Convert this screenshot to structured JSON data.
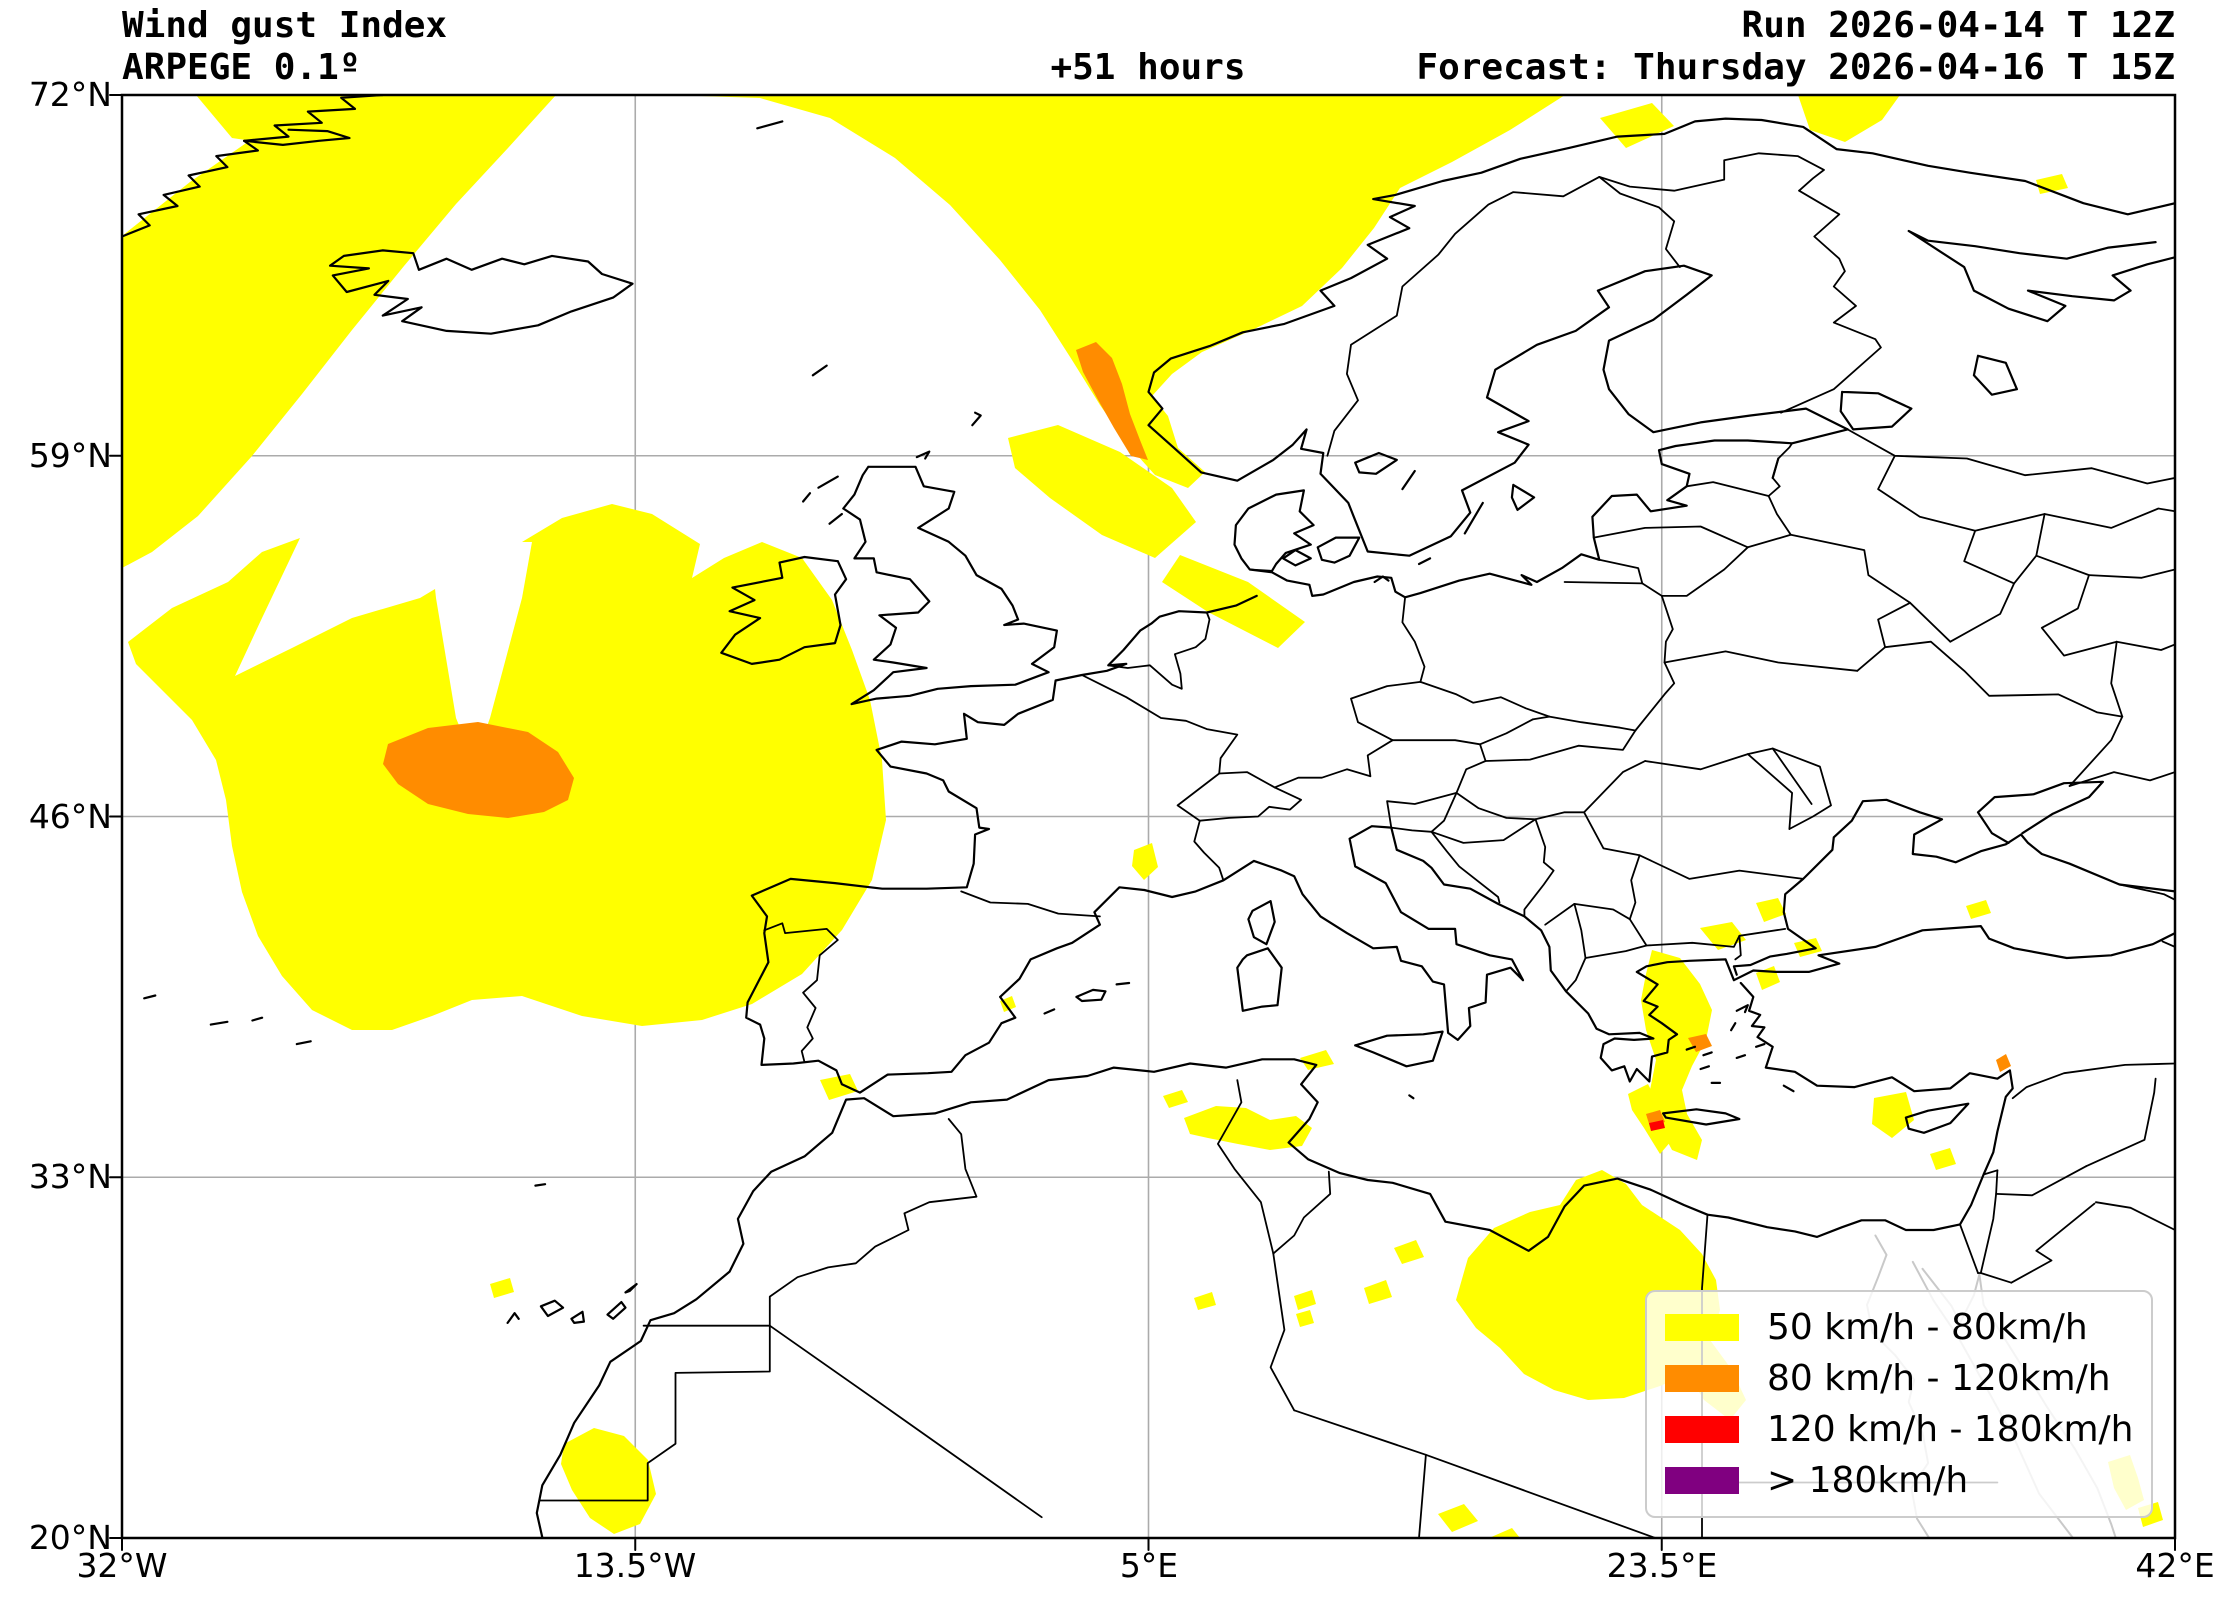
{
  "header": {
    "title_line1": "Wind gust Index",
    "title_line2": "ARPEGE 0.1º",
    "lead_time": "+51 hours",
    "run_line": "Run 2026-04-14 T 12Z",
    "forecast_line": "Forecast: Thursday 2026-04-16 T 15Z"
  },
  "axes": {
    "lat_ticks": [
      {
        "label": "72°N",
        "lat": 72
      },
      {
        "label": "59°N",
        "lat": 59
      },
      {
        "label": "46°N",
        "lat": 46
      },
      {
        "label": "33°N",
        "lat": 33
      },
      {
        "label": "20°N",
        "lat": 20
      }
    ],
    "lon_ticks": [
      {
        "label": "32°W",
        "lon": -32
      },
      {
        "label": "13.5°W",
        "lon": -13.5
      },
      {
        "label": "5°E",
        "lon": 5
      },
      {
        "label": "23.5°E",
        "lon": 23.5
      },
      {
        "label": "42°E",
        "lon": 42
      }
    ]
  },
  "legend": {
    "items": [
      {
        "label": "50 km/h - 80km/h",
        "color": "#ffff00"
      },
      {
        "label": "80 km/h - 120km/h",
        "color": "#ff8c00"
      },
      {
        "label": "120 km/h - 180km/h",
        "color": "#ff0000"
      },
      {
        "label": "> 180km/h",
        "color": "#800080"
      }
    ]
  },
  "map": {
    "projection": "equirectangular",
    "lon_range": [
      -32,
      42
    ],
    "lat_range": [
      20,
      72
    ],
    "gridline_color": "#ababab",
    "coast_color": "#000000",
    "river_color": "#c9c9c9"
  }
}
